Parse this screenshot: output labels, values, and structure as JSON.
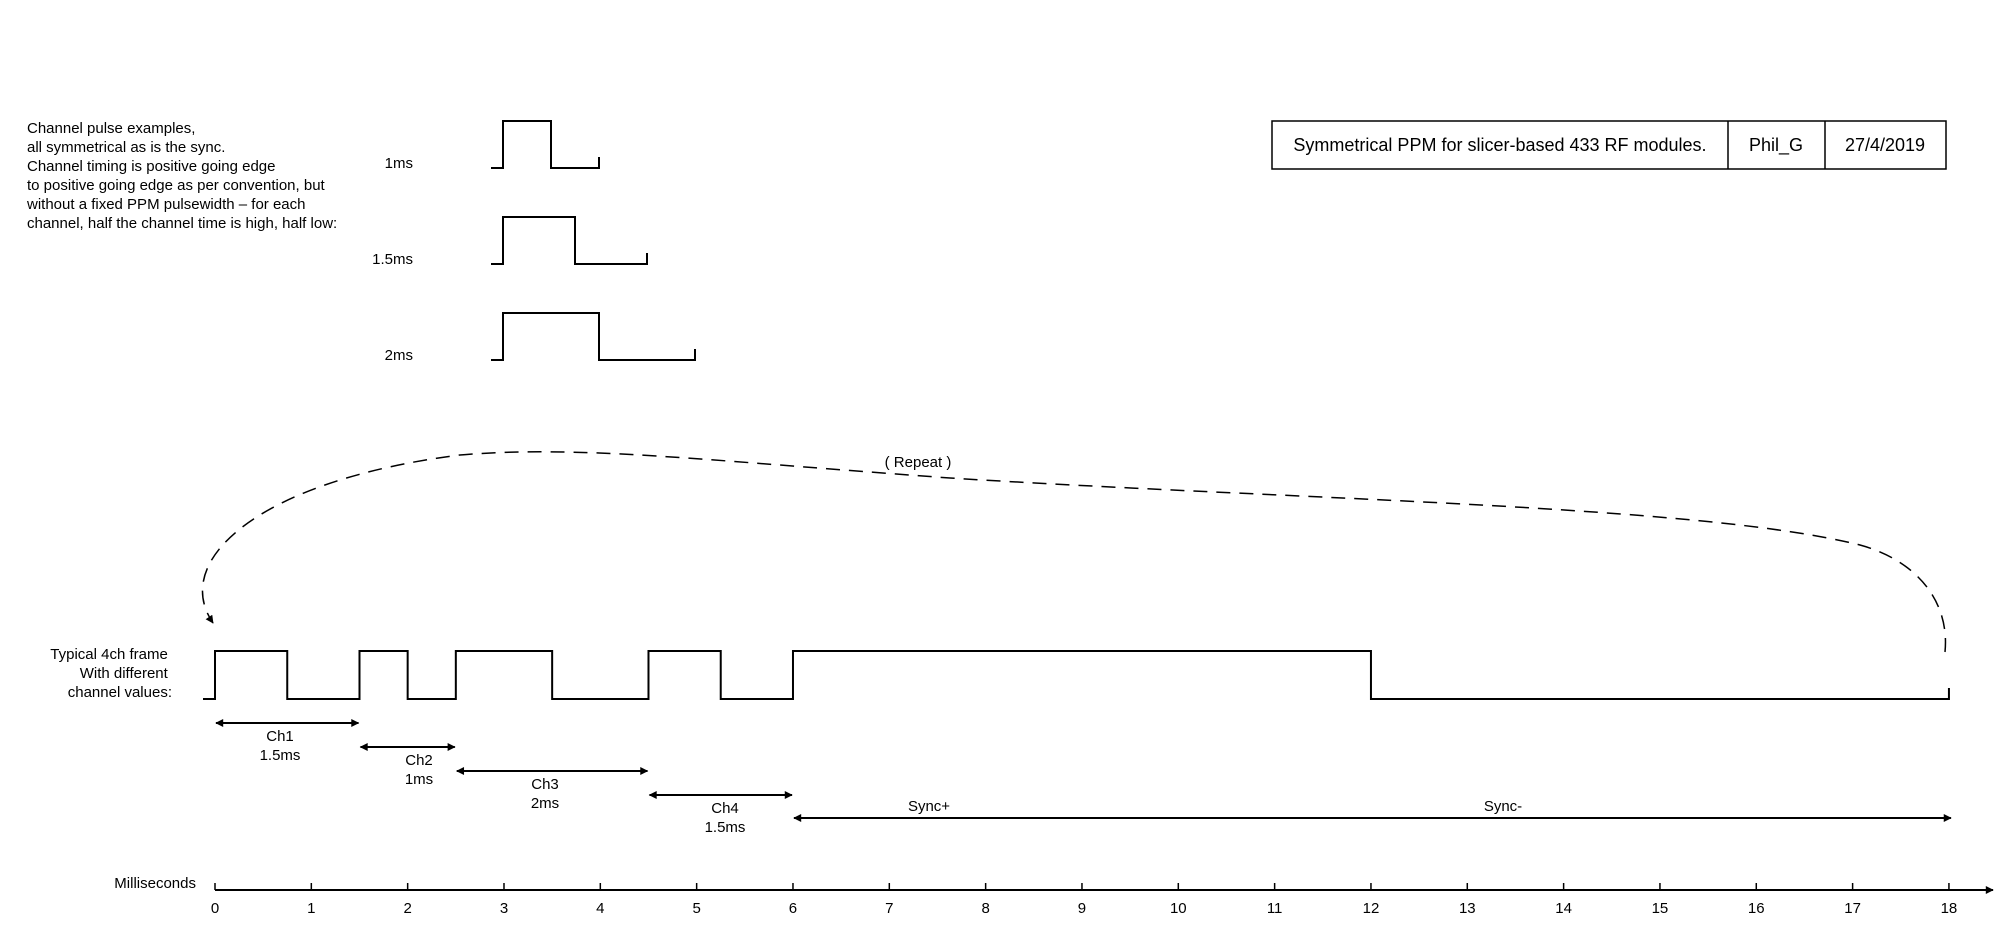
{
  "intro": {
    "lines": [
      "Channel pulse examples,",
      "all symmetrical as is the sync.",
      "Channel timing is positive going edge",
      "to positive going edge as per convention, but",
      "without a fixed PPM pulsewidth – for each",
      "channel, half the channel time is high, half low:"
    ]
  },
  "examples": [
    {
      "label": "1ms",
      "period_ms": 1
    },
    {
      "label": "1.5ms",
      "period_ms": 1.5
    },
    {
      "label": "2ms",
      "period_ms": 2
    }
  ],
  "title_block": {
    "title": "Symmetrical PPM for slicer-based 433 RF modules.",
    "author": "Phil_G",
    "date": "27/4/2019"
  },
  "repeat_label": "( Repeat )",
  "frame": {
    "label_lines": [
      "Typical 4ch frame",
      "With different",
      "channel values:"
    ],
    "transitions_ms": [
      0,
      0.75,
      1.5,
      2,
      2.5,
      3.5,
      4.5,
      5.25,
      6,
      12,
      18
    ]
  },
  "channels": [
    {
      "name": "Ch1",
      "value": "1.5ms",
      "start_ms": 0,
      "end_ms": 1.5
    },
    {
      "name": "Ch2",
      "value": "1ms",
      "start_ms": 1.5,
      "end_ms": 2.5
    },
    {
      "name": "Ch3",
      "value": "2ms",
      "start_ms": 2.5,
      "end_ms": 4.5
    },
    {
      "name": "Ch4",
      "value": "1.5ms",
      "start_ms": 4.5,
      "end_ms": 6
    }
  ],
  "sync": {
    "plus_label": "Sync+",
    "minus_label": "Sync-",
    "start_ms": 6,
    "end_ms": 18
  },
  "axis": {
    "label": "Milliseconds",
    "ticks": [
      "0",
      "1",
      "2",
      "3",
      "4",
      "5",
      "6",
      "7",
      "8",
      "9",
      "10",
      "11",
      "12",
      "13",
      "14",
      "15",
      "16",
      "17",
      "18"
    ]
  }
}
